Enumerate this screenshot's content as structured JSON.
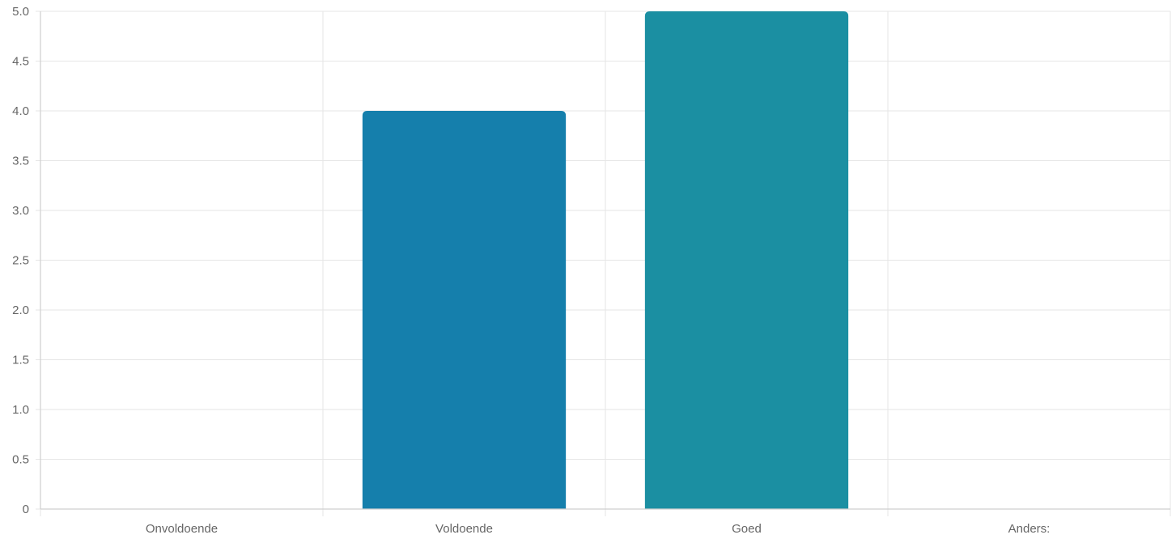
{
  "chart_data": {
    "type": "bar",
    "categories": [
      "Onvoldoende",
      "Voldoende",
      "Goed",
      "Anders:"
    ],
    "values": [
      0,
      4,
      5,
      0
    ],
    "colors": [
      "#157fac",
      "#157fac",
      "#1b8fa2",
      "#1b8fa2"
    ],
    "ylim": [
      0,
      5
    ],
    "yticks": [
      "0",
      "0.5",
      "1.0",
      "1.5",
      "2.0",
      "2.5",
      "3.0",
      "3.5",
      "4.0",
      "4.5",
      "5.0"
    ],
    "grid": true,
    "legend": "none"
  }
}
